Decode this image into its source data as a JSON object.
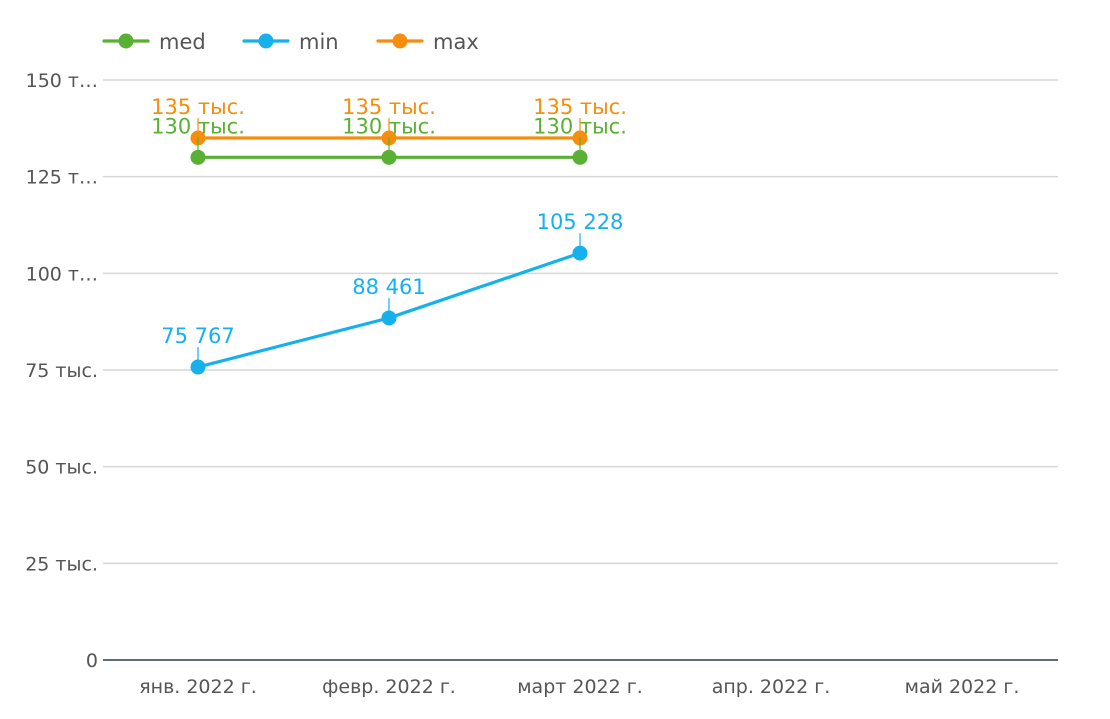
{
  "chart_data": {
    "type": "line",
    "title": "",
    "xlabel": "",
    "ylabel": "",
    "categories": [
      "янв. 2022 г.",
      "февр. 2022 г.",
      "март 2022 г.",
      "апр. 2022 г.",
      "май 2022 г."
    ],
    "ylim": [
      0,
      150000
    ],
    "yticks": [
      {
        "value": 0,
        "label": "0"
      },
      {
        "value": 25000,
        "label": "25 тыс."
      },
      {
        "value": 50000,
        "label": "50 тыс."
      },
      {
        "value": 75000,
        "label": "75 тыс."
      },
      {
        "value": 100000,
        "label": "100 т…"
      },
      {
        "value": 125000,
        "label": "125 т…"
      },
      {
        "value": 150000,
        "label": "150 т…"
      }
    ],
    "grid": true,
    "legend_position": "top-left",
    "series": [
      {
        "name": "med",
        "color": "#5ab033",
        "values": [
          130000,
          130000,
          130000,
          null,
          null
        ],
        "labels": [
          "130 тыс.",
          "130 тыс.",
          "130 тыс.",
          "",
          ""
        ]
      },
      {
        "name": "min",
        "color": "#16b1ec",
        "values": [
          75767,
          88461,
          105228,
          null,
          null
        ],
        "labels": [
          "75 767",
          "88 461",
          "105 228",
          "",
          ""
        ]
      },
      {
        "name": "max",
        "color": "#f58e0c",
        "values": [
          135000,
          135000,
          135000,
          null,
          null
        ],
        "labels": [
          "135 тыс.",
          "135 тыс.",
          "135 тыс.",
          "",
          ""
        ]
      }
    ]
  }
}
